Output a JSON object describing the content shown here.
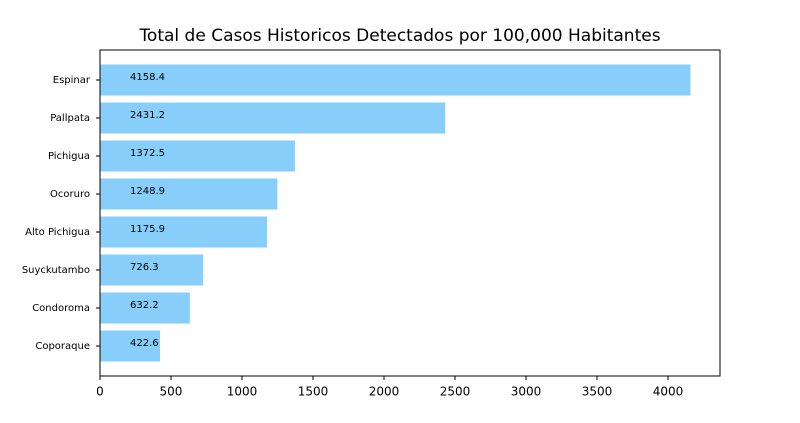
{
  "chart_data": {
    "type": "hbar",
    "title": "Total de Casos Historicos Detectados por 100,000 Habitantes",
    "categories": [
      "Espinar",
      "Pallpata",
      "Pichigua",
      "Ocoruro",
      "Alto Pichigua",
      "Suyckutambo",
      "Condoroma",
      "Coporaque"
    ],
    "values": [
      4158.4,
      2431.2,
      1372.5,
      1248.9,
      1175.9,
      726.3,
      632.2,
      422.6
    ],
    "color": "#87cefa",
    "xlim": [
      0,
      4366.3
    ],
    "xticks": [
      0,
      500,
      1000,
      1500,
      2000,
      2500,
      3000,
      3500,
      4000
    ],
    "grid": false
  }
}
